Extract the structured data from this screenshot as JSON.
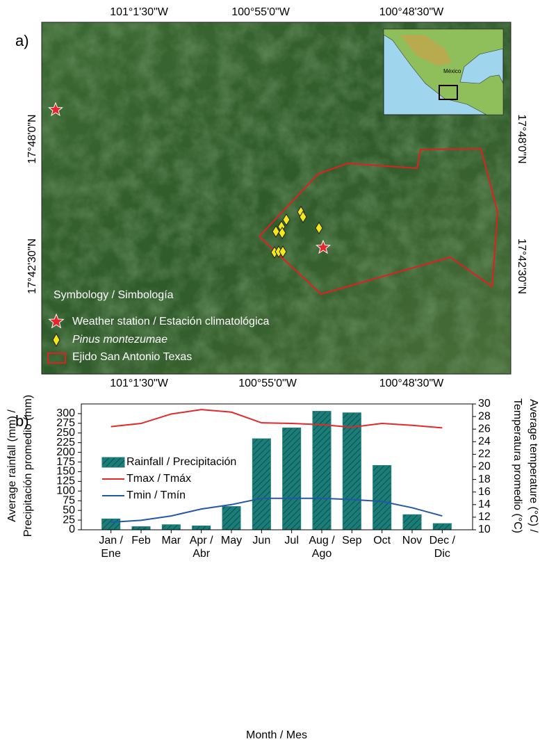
{
  "map": {
    "panel_label": "a)",
    "lon_ticks": [
      "101°1'30\"W",
      "100°55'0\"W",
      "100°48'30\"W"
    ],
    "lat_ticks": [
      "17°48'0\"N",
      "17°42'30\"N"
    ],
    "inset_label": "México",
    "legend_title": "Symbology / Simbología",
    "legend_items": [
      "Weather station / Estación climatológica",
      "Pinus montezumae",
      "Ejido San Antonio Texas"
    ]
  },
  "chart_data": {
    "type": "bar",
    "panel_label": "b)",
    "xlabel": "Month / Mes",
    "ylabel": [
      "Average rainfall (mm) /",
      "Precipitación promedio (mm)"
    ],
    "y2label": [
      "Average temperature (°C) /",
      "Temperatura promedio (°C)"
    ],
    "categories": [
      "Jan / Ene",
      "Feb",
      "Mar",
      "Apr / Abr",
      "May",
      "Jun",
      "Jul",
      "Aug / Ago",
      "Sep",
      "Oct",
      "Nov",
      "Dec / Dic"
    ],
    "series": [
      {
        "name": "Rainfall / Precipitación",
        "type": "bar",
        "color": "#1b7d78",
        "values": [
          28,
          8,
          13,
          10,
          60,
          235,
          263,
          306,
          302,
          166,
          39,
          16
        ]
      },
      {
        "name": "Tmax / Tmáx",
        "type": "line",
        "axis": "y2",
        "color": "#e3282a",
        "values": [
          26.4,
          26.9,
          28.4,
          29.1,
          28.7,
          27.0,
          26.9,
          26.7,
          26.3,
          26.9,
          26.6,
          26.2
        ]
      },
      {
        "name": "Tmin / Tmín",
        "type": "line",
        "axis": "y2",
        "color": "#2557a5",
        "values": [
          11.2,
          11.5,
          12.2,
          13.3,
          14.0,
          15.0,
          15.0,
          15.0,
          14.8,
          14.5,
          13.5,
          12.2
        ]
      }
    ],
    "ylim": [
      0,
      325
    ],
    "yticks": [
      0,
      25,
      50,
      75,
      100,
      125,
      150,
      175,
      200,
      225,
      250,
      275,
      300
    ],
    "y2lim": [
      10,
      30
    ],
    "y2ticks": [
      10,
      12,
      14,
      16,
      18,
      20,
      22,
      24,
      26,
      28,
      30
    ]
  }
}
